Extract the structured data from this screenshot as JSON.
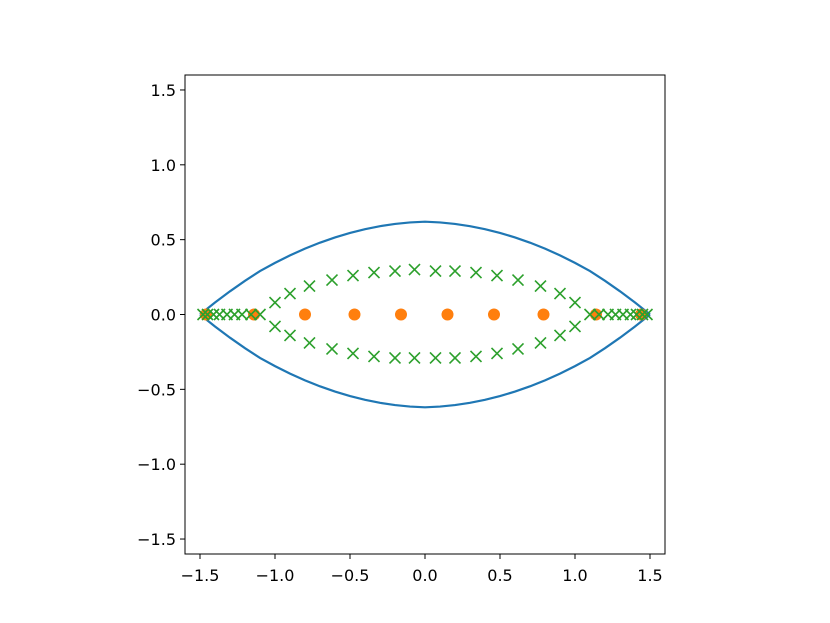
{
  "chart_data": {
    "type": "scatter",
    "title": "",
    "xlabel": "",
    "ylabel": "",
    "xlim": [
      -1.6,
      1.6
    ],
    "ylim": [
      -1.6,
      1.6
    ],
    "grid": false,
    "aspect": "equal",
    "x_ticks": [
      -1.5,
      -1.0,
      -0.5,
      0.0,
      0.5,
      1.0,
      1.5
    ],
    "x_tick_labels": [
      "−1.5",
      "−1.0",
      "−0.5",
      "0.0",
      "0.5",
      "1.0",
      "1.5"
    ],
    "y_ticks": [
      -1.5,
      -1.0,
      -0.5,
      0.0,
      0.5,
      1.0,
      1.5
    ],
    "y_tick_labels": [
      "−1.5",
      "−1.0",
      "−0.5",
      "0.0",
      "0.5",
      "1.0",
      "1.5"
    ],
    "series": [
      {
        "marker": "line",
        "color": "#1f77b4",
        "upper": {
          "x": [
            -1.5,
            -1.4,
            -1.3,
            -1.2,
            -1.1,
            -1.0,
            -0.9,
            -0.8,
            -0.7,
            -0.6,
            -0.5,
            -0.4,
            -0.3,
            -0.2,
            -0.1,
            0.0,
            0.1,
            0.2,
            0.3,
            0.4,
            0.5,
            0.6,
            0.7,
            0.8,
            0.9,
            1.0,
            1.1,
            1.2,
            1.3,
            1.4,
            1.5
          ],
          "y": [
            0.0,
            0.08,
            0.155,
            0.225,
            0.29,
            0.345,
            0.395,
            0.44,
            0.48,
            0.515,
            0.545,
            0.57,
            0.59,
            0.605,
            0.615,
            0.62,
            0.615,
            0.605,
            0.59,
            0.57,
            0.545,
            0.515,
            0.48,
            0.44,
            0.395,
            0.345,
            0.29,
            0.225,
            0.155,
            0.08,
            0.0
          ]
        },
        "lower": {
          "x": [
            -1.5,
            -1.4,
            -1.3,
            -1.2,
            -1.1,
            -1.0,
            -0.9,
            -0.8,
            -0.7,
            -0.6,
            -0.5,
            -0.4,
            -0.3,
            -0.2,
            -0.1,
            0.0,
            0.1,
            0.2,
            0.3,
            0.4,
            0.5,
            0.6,
            0.7,
            0.8,
            0.9,
            1.0,
            1.1,
            1.2,
            1.3,
            1.4,
            1.5
          ],
          "y": [
            0.0,
            -0.08,
            -0.155,
            -0.225,
            -0.29,
            -0.345,
            -0.395,
            -0.44,
            -0.48,
            -0.515,
            -0.545,
            -0.57,
            -0.59,
            -0.605,
            -0.615,
            -0.62,
            -0.615,
            -0.605,
            -0.59,
            -0.57,
            -0.545,
            -0.515,
            -0.48,
            -0.44,
            -0.395,
            -0.345,
            -0.29,
            -0.225,
            -0.155,
            -0.08,
            0.0
          ]
        }
      },
      {
        "marker": "circle",
        "color": "#ff7f0e",
        "x": [
          -1.46,
          -1.14,
          -0.8,
          -0.47,
          -0.16,
          0.15,
          0.46,
          0.79,
          1.14,
          1.44
        ],
        "y": [
          0,
          0,
          0,
          0,
          0,
          0,
          0,
          0,
          0,
          0
        ]
      },
      {
        "marker": "x",
        "color": "#2ca02c",
        "x": [
          -1.48,
          -1.45,
          -1.41,
          -1.37,
          -1.32,
          -1.27,
          -1.22,
          -1.16,
          -1.1,
          -1.0,
          -0.9,
          -0.77,
          -0.62,
          -0.48,
          -0.34,
          -0.2,
          -0.07,
          0.07,
          0.2,
          0.34,
          0.48,
          0.62,
          0.77,
          0.9,
          1.0,
          1.1,
          1.16,
          1.22,
          1.27,
          1.32,
          1.37,
          1.41,
          1.45,
          1.48,
          -1.0,
          -0.9,
          -0.77,
          -0.62,
          -0.48,
          -0.34,
          -0.2,
          -0.07,
          0.07,
          0.2,
          0.34,
          0.48,
          0.62,
          0.77,
          0.9,
          1.0
        ],
        "y": [
          0,
          0,
          0,
          0,
          0,
          0,
          0,
          0,
          0,
          0.08,
          0.14,
          0.19,
          0.23,
          0.26,
          0.28,
          0.29,
          0.3,
          0.29,
          0.29,
          0.28,
          0.26,
          0.23,
          0.19,
          0.14,
          0.08,
          0,
          0,
          0,
          0,
          0,
          0,
          0,
          0,
          0,
          -0.08,
          -0.14,
          -0.19,
          -0.23,
          -0.26,
          -0.28,
          -0.29,
          -0.29,
          -0.29,
          -0.29,
          -0.28,
          -0.26,
          -0.23,
          -0.19,
          -0.14,
          -0.08
        ]
      }
    ]
  }
}
